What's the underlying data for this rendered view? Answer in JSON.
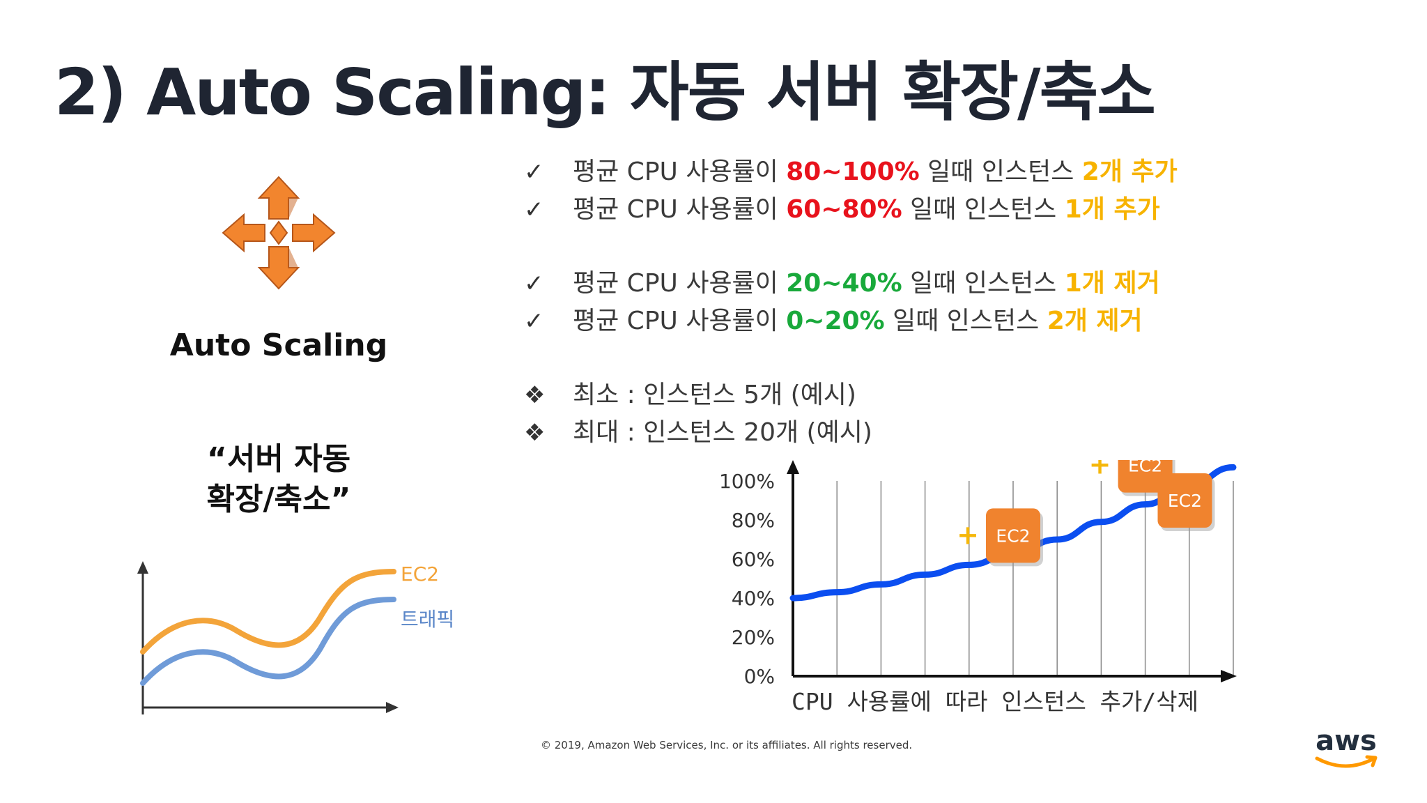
{
  "slide": {
    "title": "2) Auto Scaling: 자동 서버 확장/축소",
    "icon_label": "Auto Scaling",
    "quote_line1": "“서버 자동",
    "quote_line2": "확장/축소”",
    "footer": "© 2019, Amazon Web Services, Inc. or its affiliates. All rights reserved.",
    "logo_text": "aws"
  },
  "mini_chart": {
    "series_ec2_label": "EC2",
    "series_traffic_label": "트래픽",
    "colors": {
      "ec2": "#f3a43a",
      "traffic": "#6f9bd8"
    }
  },
  "rules": [
    {
      "mark": "✓",
      "prefix": "평균 CPU 사용률이 ",
      "range": "80~100%",
      "range_color": "#e8121c",
      "middle": " 일때 인스턴스 ",
      "action": "2개 추가",
      "action_color": "#f7b300"
    },
    {
      "mark": "✓",
      "prefix": "평균 CPU 사용률이 ",
      "range": "60~80%",
      "range_color": "#e8121c",
      "middle": " 일때 인스턴스 ",
      "action": "1개 추가",
      "action_color": "#f7b300"
    },
    {
      "mark": "✓",
      "prefix": "평균 CPU 사용률이 ",
      "range": "20~40%",
      "range_color": "#19a93b",
      "middle": " 일때 인스턴스 ",
      "action": "1개 제거",
      "action_color": "#f7b300"
    },
    {
      "mark": "✓",
      "prefix": "평균 CPU 사용률이 ",
      "range": "0~20%",
      "range_color": "#19a93b",
      "middle": " 일때 인스턴스 ",
      "action": "2개 제거",
      "action_color": "#f7b300"
    }
  ],
  "limits": [
    {
      "mark": "❖",
      "text": "최소 : 인스턴스 5개 (예시)"
    },
    {
      "mark": "❖",
      "text": "최대 : 인스턴스 20개 (예시)"
    }
  ],
  "chart_data": {
    "type": "line",
    "title": "",
    "xlabel": "CPU 사용률에 따라 인스턴스 추가/삭제",
    "ylabel": "",
    "y_ticks": [
      "100%",
      "80%",
      "60%",
      "40%",
      "20%",
      "0%"
    ],
    "ylim": [
      0,
      100
    ],
    "grid": "vertical",
    "series": [
      {
        "values": [
          40,
          43,
          47,
          52,
          57,
          63,
          70,
          79,
          88,
          98,
          107
        ],
        "color": "#0b4ef0"
      }
    ],
    "annotations": [
      {
        "label": "EC2",
        "marker": "+",
        "at_index": 5,
        "value": 72
      },
      {
        "label": "EC2",
        "marker": "+",
        "at_index": 8,
        "value": 108
      },
      {
        "label": "EC2",
        "marker": "",
        "at_index": 8.9,
        "value": 90
      }
    ],
    "colors": {
      "box": "#f0832e",
      "plus": "#f5b70a",
      "axis": "#111111"
    }
  }
}
